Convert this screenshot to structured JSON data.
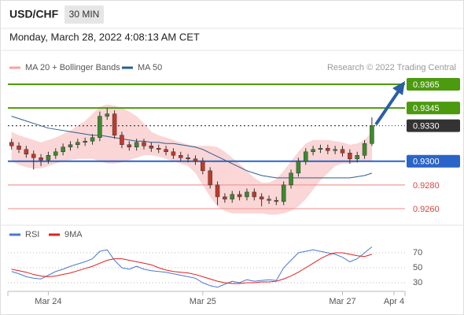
{
  "header": {
    "symbol": "USD/CHF",
    "timeframe": "30 MIN",
    "datetime": "Monday, March 28, 2022 4:08:13 AM CET"
  },
  "chart_data": [
    {
      "type": "candlestick",
      "credit": "Research © 2022 Trading Central",
      "up_color": "#3c8a2e",
      "down_color": "#c0392b",
      "xlim": [
        -0.5,
        53.5
      ],
      "ylim": [
        0.925,
        0.9373
      ],
      "xticks": [
        {
          "value": 5,
          "label": "Mar 24"
        },
        {
          "value": 26,
          "label": "Mar 25"
        },
        {
          "value": 45,
          "label": "Mar 27"
        },
        {
          "value": 52,
          "label": "Apr 4"
        }
      ],
      "open": [
        0.9316,
        0.9313,
        0.931,
        0.9306,
        0.9303,
        0.9301,
        0.9305,
        0.9308,
        0.9312,
        0.9314,
        0.9316,
        0.9317,
        0.932,
        0.9338,
        0.934,
        0.9322,
        0.9314,
        0.9312,
        0.9316,
        0.9313,
        0.9311,
        0.931,
        0.9308,
        0.9305,
        0.9303,
        0.9302,
        0.93,
        0.9292,
        0.928,
        0.927,
        0.9268,
        0.9272,
        0.927,
        0.9274,
        0.927,
        0.9268,
        0.9267,
        0.9266,
        0.928,
        0.929,
        0.93,
        0.9308,
        0.931,
        0.9311,
        0.9309,
        0.931,
        0.9307,
        0.9302,
        0.9305,
        0.9315
      ],
      "high": [
        0.9319,
        0.9316,
        0.9313,
        0.9309,
        0.9306,
        0.9308,
        0.9311,
        0.9315,
        0.9317,
        0.9319,
        0.932,
        0.9323,
        0.9342,
        0.9345,
        0.9343,
        0.9325,
        0.9317,
        0.9319,
        0.9319,
        0.9316,
        0.9314,
        0.9313,
        0.9311,
        0.9308,
        0.9306,
        0.9305,
        0.9303,
        0.9295,
        0.9283,
        0.9273,
        0.9275,
        0.9275,
        0.9277,
        0.9277,
        0.9273,
        0.9271,
        0.927,
        0.9283,
        0.9293,
        0.9303,
        0.9311,
        0.9313,
        0.9314,
        0.9314,
        0.9313,
        0.9313,
        0.931,
        0.9308,
        0.9318,
        0.9337
      ],
      "low": [
        0.931,
        0.9307,
        0.9303,
        0.9293,
        0.9296,
        0.9298,
        0.9302,
        0.9305,
        0.9309,
        0.9311,
        0.9313,
        0.9314,
        0.9317,
        0.9335,
        0.9319,
        0.9311,
        0.9309,
        0.9309,
        0.931,
        0.9308,
        0.9307,
        0.9305,
        0.9302,
        0.93,
        0.9299,
        0.9297,
        0.9289,
        0.9277,
        0.9263,
        0.9265,
        0.9265,
        0.9267,
        0.9267,
        0.9267,
        0.9262,
        0.9264,
        0.9263,
        0.9263,
        0.9277,
        0.9287,
        0.9297,
        0.9305,
        0.9307,
        0.9306,
        0.9306,
        0.9304,
        0.9298,
        0.9299,
        0.9302,
        0.9313
      ],
      "close": [
        0.9313,
        0.931,
        0.9306,
        0.9303,
        0.9301,
        0.9305,
        0.9308,
        0.9312,
        0.9314,
        0.9316,
        0.9317,
        0.932,
        0.9338,
        0.934,
        0.9322,
        0.9314,
        0.9312,
        0.9316,
        0.9313,
        0.9311,
        0.931,
        0.9308,
        0.9305,
        0.9303,
        0.9302,
        0.93,
        0.9292,
        0.928,
        0.927,
        0.9268,
        0.9272,
        0.927,
        0.9274,
        0.927,
        0.9268,
        0.9267,
        0.9266,
        0.928,
        0.929,
        0.93,
        0.9308,
        0.931,
        0.9311,
        0.9309,
        0.931,
        0.9307,
        0.9302,
        0.9305,
        0.9315,
        0.933
      ],
      "bollinger": {
        "name": "MA 20 + Bollinger Bands",
        "color": "#f4a3a3",
        "upper": [
          0.9325,
          0.9322,
          0.932,
          0.9318,
          0.9316,
          0.9318,
          0.932,
          0.9323,
          0.9326,
          0.933,
          0.9334,
          0.934,
          0.9346,
          0.9348,
          0.9347,
          0.9345,
          0.9342,
          0.9338,
          0.9332,
          0.9325,
          0.9322,
          0.932,
          0.9318,
          0.9316,
          0.9314,
          0.9313,
          0.9313,
          0.9313,
          0.9312,
          0.9308,
          0.9303,
          0.9298,
          0.9292,
          0.9286,
          0.9282,
          0.9282,
          0.9285,
          0.9292,
          0.93,
          0.9308,
          0.9315,
          0.9318,
          0.9318,
          0.9318,
          0.9317,
          0.9316,
          0.9314,
          0.9315,
          0.9318,
          0.9325
        ],
        "lower": [
          0.93,
          0.9297,
          0.9295,
          0.9294,
          0.9294,
          0.9296,
          0.9298,
          0.93,
          0.9301,
          0.9302,
          0.9302,
          0.9302,
          0.93,
          0.9298,
          0.9298,
          0.9299,
          0.9301,
          0.9303,
          0.9305,
          0.9305,
          0.9304,
          0.9302,
          0.93,
          0.9298,
          0.9296,
          0.929,
          0.928,
          0.927,
          0.9262,
          0.9258,
          0.9256,
          0.9256,
          0.9256,
          0.9256,
          0.9256,
          0.9255,
          0.9255,
          0.9256,
          0.9258,
          0.9262,
          0.9268,
          0.9276,
          0.9284,
          0.929,
          0.9296,
          0.9298,
          0.9298,
          0.9299,
          0.93,
          0.93
        ]
      },
      "ma50": {
        "name": "MA 50",
        "color": "#2f5d8c",
        "values": [
          0.9338,
          0.9336,
          0.9334,
          0.9332,
          0.933,
          0.9328,
          0.9327,
          0.9326,
          0.9325,
          0.9324,
          0.9323,
          0.9322,
          0.9322,
          0.9321,
          0.932,
          0.9319,
          0.9318,
          0.9317,
          0.9317,
          0.9316,
          0.9316,
          0.9315,
          0.9315,
          0.9314,
          0.9313,
          0.9312,
          0.931,
          0.9307,
          0.9304,
          0.9301,
          0.9298,
          0.9295,
          0.9292,
          0.929,
          0.9288,
          0.9287,
          0.9286,
          0.9286,
          0.9286,
          0.9286,
          0.9286,
          0.9286,
          0.9286,
          0.9286,
          0.9286,
          0.9286,
          0.9286,
          0.9287,
          0.9288,
          0.929
        ]
      },
      "levels": [
        {
          "value": 0.9365,
          "label": "0.9365",
          "color": "#4c9a0e",
          "boxed": true
        },
        {
          "value": 0.9345,
          "label": "0.9345",
          "color": "#4c9a0e",
          "boxed": true
        },
        {
          "value": 0.933,
          "label": "0.9330",
          "color": "#333333",
          "boxed": true,
          "dotted": true
        },
        {
          "value": 0.93,
          "label": "0.9300",
          "color": "#2a64c8",
          "boxed": true
        },
        {
          "value": 0.928,
          "label": "0.9280",
          "color": "#f29a9a",
          "boxed": false
        },
        {
          "value": 0.926,
          "label": "0.9260",
          "color": "#f29a9a",
          "boxed": false
        }
      ]
    },
    {
      "type": "line",
      "xlim": [
        -0.5,
        53.5
      ],
      "ylim": [
        18,
        82
      ],
      "yticks": [
        70,
        50,
        30
      ],
      "series": [
        {
          "name": "RSI",
          "color": "#4a78d0",
          "values": [
            45,
            42,
            38,
            36,
            35,
            40,
            45,
            48,
            52,
            55,
            58,
            62,
            72,
            74,
            60,
            50,
            48,
            52,
            48,
            46,
            45,
            44,
            42,
            40,
            38,
            36,
            30,
            26,
            24,
            28,
            32,
            30,
            34,
            32,
            33,
            34,
            33,
            50,
            60,
            70,
            72,
            74,
            72,
            70,
            68,
            64,
            58,
            62,
            70,
            78
          ]
        },
        {
          "name": "9MA",
          "color": "#e02020",
          "values": [
            48,
            46,
            44,
            41,
            39,
            38,
            39,
            41,
            43,
            46,
            49,
            52,
            56,
            60,
            62,
            62,
            60,
            58,
            56,
            54,
            50,
            47,
            45,
            44,
            43,
            41,
            38,
            35,
            32,
            30,
            29,
            29,
            30,
            30,
            31,
            31,
            32,
            35,
            39,
            44,
            50,
            56,
            62,
            67,
            70,
            70,
            68,
            66,
            65,
            68
          ]
        }
      ]
    }
  ]
}
